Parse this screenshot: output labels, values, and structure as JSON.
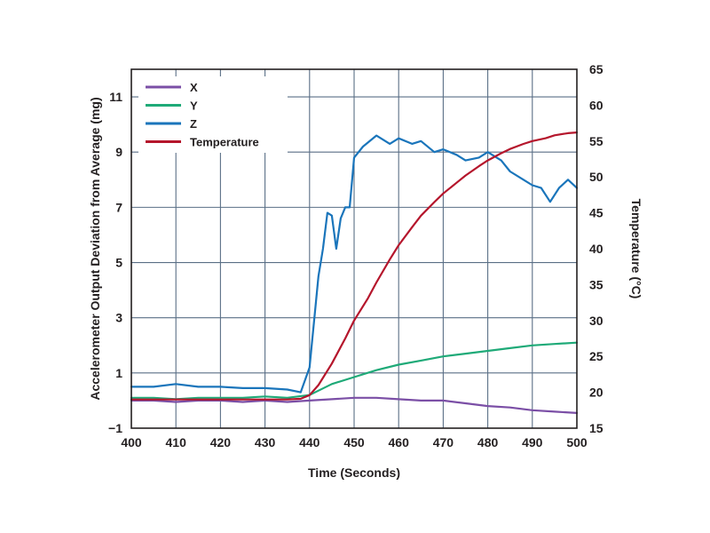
{
  "chart_data": {
    "type": "line",
    "xlabel": "Time (Seconds)",
    "ylabel": "Accelerometer Output Deviation from Average (mg)",
    "y2label": "Temperature (°C)",
    "xlim": [
      400,
      500
    ],
    "ylim": [
      -1,
      12
    ],
    "y2lim": [
      15,
      65
    ],
    "x_ticks": [
      "400",
      "410",
      "420",
      "430",
      "440",
      "450",
      "460",
      "470",
      "480",
      "490",
      "500"
    ],
    "y_ticks": [
      "11",
      "9",
      "7",
      "5",
      "3",
      "1",
      "−1"
    ],
    "y_tick_values": [
      11,
      9,
      7,
      5,
      3,
      1,
      -1
    ],
    "y2_ticks": [
      "65",
      "60",
      "55",
      "50",
      "45",
      "40",
      "35",
      "30",
      "25",
      "20",
      "15"
    ],
    "y2_tick_values": [
      65,
      60,
      55,
      50,
      45,
      40,
      35,
      30,
      25,
      20,
      15
    ],
    "grid": true,
    "legend_position": "top-left",
    "series": [
      {
        "name": "X",
        "color": "#7b4fa6",
        "axis": "left",
        "x": [
          400,
          405,
          410,
          415,
          420,
          425,
          430,
          435,
          440,
          445,
          450,
          455,
          460,
          465,
          470,
          475,
          480,
          485,
          490,
          495,
          500
        ],
        "values": [
          0.0,
          0.0,
          -0.05,
          0.0,
          0.0,
          -0.05,
          0.0,
          -0.05,
          0.0,
          0.05,
          0.1,
          0.1,
          0.05,
          0.0,
          0.0,
          -0.1,
          -0.2,
          -0.25,
          -0.35,
          -0.4,
          -0.45
        ]
      },
      {
        "name": "Y",
        "color": "#1faa78",
        "axis": "left",
        "x": [
          400,
          405,
          410,
          415,
          420,
          425,
          430,
          435,
          440,
          445,
          450,
          455,
          460,
          465,
          470,
          475,
          480,
          485,
          490,
          495,
          500
        ],
        "values": [
          0.1,
          0.1,
          0.05,
          0.1,
          0.1,
          0.1,
          0.15,
          0.1,
          0.2,
          0.6,
          0.85,
          1.1,
          1.3,
          1.45,
          1.6,
          1.7,
          1.8,
          1.9,
          2.0,
          2.05,
          2.1
        ]
      },
      {
        "name": "Z",
        "color": "#1a75bb",
        "axis": "left",
        "x": [
          400,
          405,
          410,
          415,
          420,
          425,
          430,
          435,
          438,
          440,
          442,
          443,
          444,
          445,
          446,
          447,
          448,
          449,
          450,
          452,
          455,
          458,
          460,
          463,
          465,
          468,
          470,
          473,
          475,
          478,
          480,
          483,
          485,
          488,
          490,
          492,
          494,
          496,
          498,
          500
        ],
        "values": [
          0.5,
          0.5,
          0.6,
          0.5,
          0.5,
          0.45,
          0.45,
          0.4,
          0.3,
          1.2,
          4.5,
          5.5,
          6.8,
          6.7,
          5.5,
          6.6,
          7.0,
          7.0,
          8.8,
          9.2,
          9.6,
          9.3,
          9.5,
          9.3,
          9.4,
          9.0,
          9.1,
          8.9,
          8.7,
          8.8,
          9.0,
          8.7,
          8.3,
          8.0,
          7.8,
          7.7,
          7.2,
          7.7,
          8.0,
          7.7
        ]
      },
      {
        "name": "Temperature",
        "color": "#b5162c",
        "axis": "right",
        "x": [
          400,
          405,
          410,
          415,
          420,
          425,
          430,
          435,
          438,
          440,
          442,
          445,
          448,
          450,
          453,
          455,
          458,
          460,
          463,
          465,
          468,
          470,
          473,
          475,
          478,
          480,
          483,
          485,
          488,
          490,
          493,
          495,
          498,
          500
        ],
        "values": [
          19.0,
          19.0,
          19.0,
          19.0,
          19.0,
          19.0,
          19.0,
          19.0,
          19.1,
          19.6,
          21.0,
          24.0,
          27.5,
          30.0,
          33.0,
          35.3,
          38.5,
          40.5,
          43.0,
          44.6,
          46.5,
          47.7,
          49.2,
          50.2,
          51.5,
          52.3,
          53.3,
          53.9,
          54.6,
          55.0,
          55.4,
          55.8,
          56.1,
          56.2
        ]
      }
    ]
  }
}
